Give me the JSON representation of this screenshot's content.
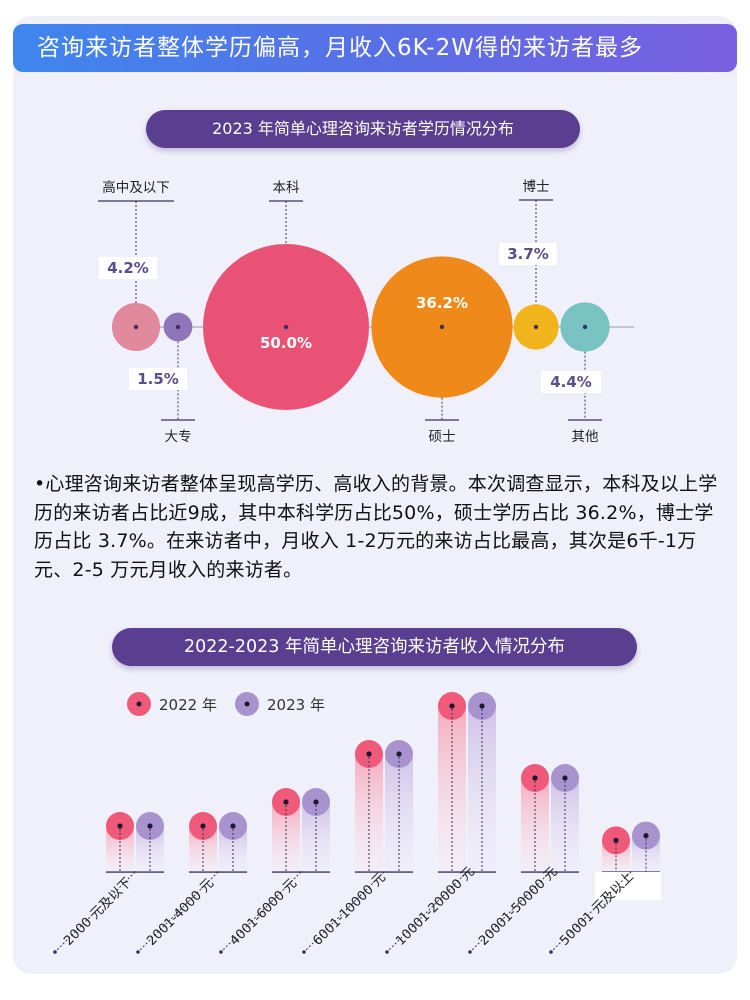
{
  "banner": {
    "title": "咨询来访者整体学历偏高，月收入6K-2W得的来访者最多"
  },
  "paragraph": "•心理咨询来访者整体呈现高学历、高收入的背景。本次调查显示，本科及以上学历的来访者占比近9成，其中本科学历占比50%，硕士学历占比 36.2%，博士学历占比 3.7%。在来访者中，月收入 1-2万元的来访占比最高，其次是6千-1万元、2-5 万元月收入的来访者。",
  "colors": {
    "banner_start": "#3e86ee",
    "banner_end": "#7a5fe0",
    "pill": "#5a3e8f",
    "series_2022": "#ef5a7a",
    "series_2023": "#a893cf"
  },
  "chart_data": [
    {
      "type": "bubble",
      "title": "2023 年简单心理咨询来访者学历情况分布",
      "categories": [
        "高中及以下",
        "大专",
        "本科",
        "硕士",
        "博士",
        "其他"
      ],
      "values": [
        4.2,
        1.5,
        50.0,
        36.2,
        3.7,
        4.4
      ],
      "value_labels": [
        "4.2%",
        "1.5%",
        "50.0%",
        "36.2%",
        "3.7%",
        "4.4%"
      ],
      "colors": [
        "#e0899c",
        "#8f76b8",
        "#ea5275",
        "#ef8a1a",
        "#f2b41c",
        "#79c3c3"
      ]
    },
    {
      "type": "bar",
      "title": "2022-2023 年简单心理咨询来访者收入情况分布",
      "categories": [
        "2000 元及以下",
        "2001-4000 元",
        "4001-6000 元",
        "6001-10000 元",
        "10001-20000 元",
        "20001-50000 元",
        "50001 元及以上"
      ],
      "series": [
        {
          "name": "2022 年",
          "values": [
            1,
            1,
            2,
            4,
            6,
            3,
            0.4
          ]
        },
        {
          "name": "2023 年",
          "values": [
            1,
            1,
            2,
            4,
            6,
            3,
            0.6
          ]
        }
      ],
      "legend": "top-left",
      "grid": false
    }
  ]
}
